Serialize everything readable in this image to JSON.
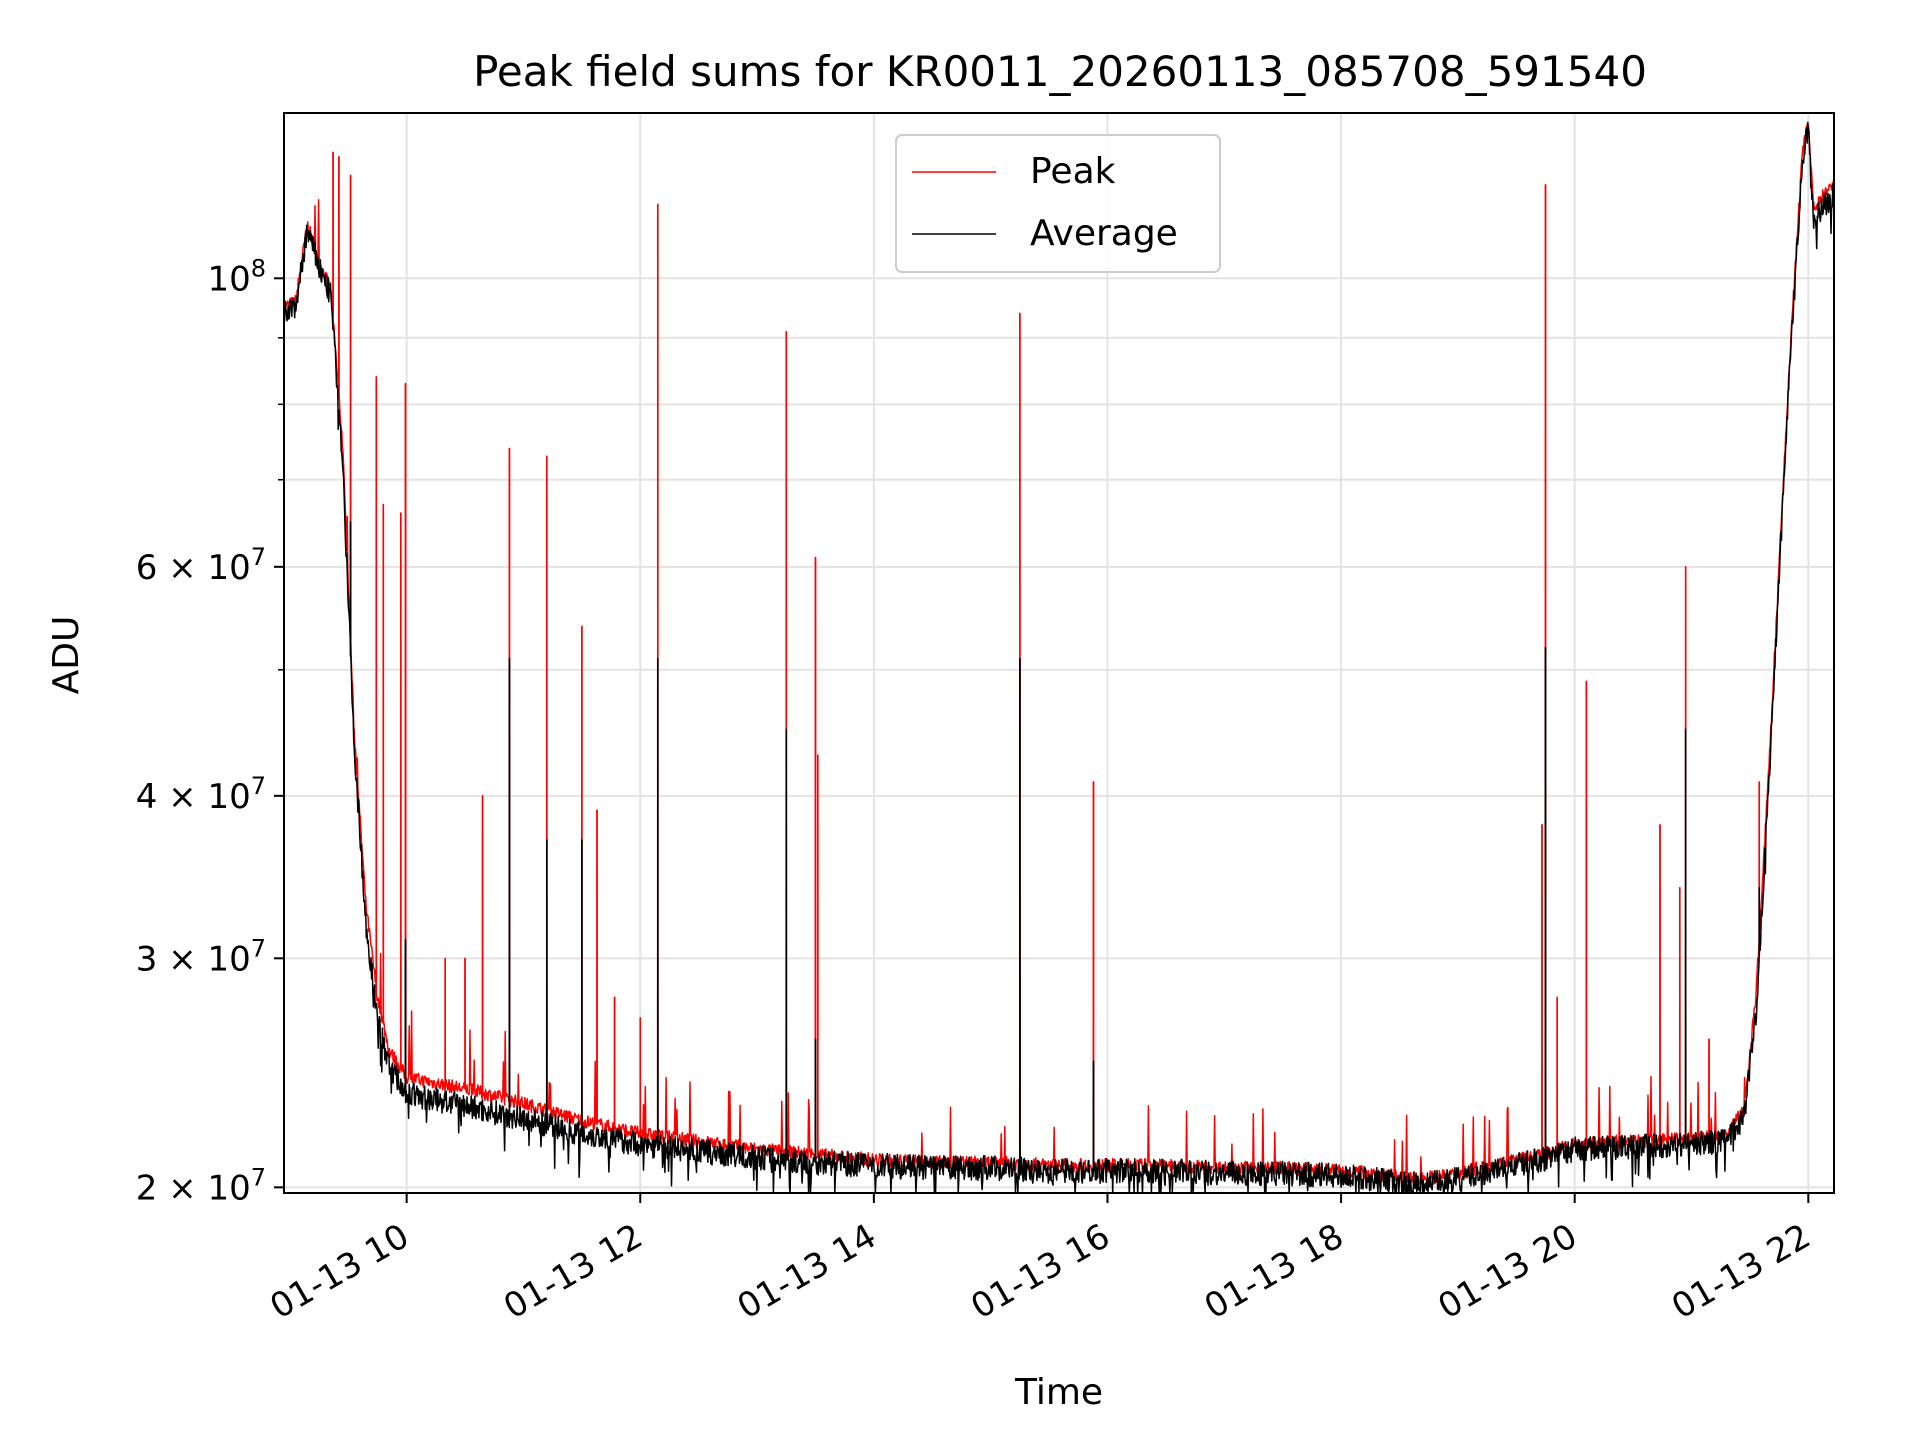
{
  "chart_data": {
    "type": "line",
    "title": "Peak field sums for KR0011_20260113_085708_591540",
    "xlabel": "Time",
    "ylabel": "ADU",
    "yscale": "log",
    "ylim": [
      19800000,
      134000000
    ],
    "xlim": [
      8.95,
      22.22
    ],
    "x_unit": "hours on 01-13",
    "grid": true,
    "legend_position": "top-center",
    "x_ticks": [
      {
        "value": 10,
        "label": "01-13 10"
      },
      {
        "value": 12,
        "label": "01-13 12"
      },
      {
        "value": 14,
        "label": "01-13 14"
      },
      {
        "value": 16,
        "label": "01-13 16"
      },
      {
        "value": 18,
        "label": "01-13 18"
      },
      {
        "value": 20,
        "label": "01-13 20"
      },
      {
        "value": 22,
        "label": "01-13 22"
      }
    ],
    "y_ticks_major": [
      {
        "value": 100000000,
        "mantissa": "",
        "base": "10",
        "exp": "8"
      },
      {
        "value": 60000000,
        "mantissa": "6 × ",
        "base": "10",
        "exp": "7"
      },
      {
        "value": 40000000,
        "mantissa": "4 × ",
        "base": "10",
        "exp": "7"
      },
      {
        "value": 30000000,
        "mantissa": "3 × ",
        "base": "10",
        "exp": "7"
      },
      {
        "value": 20000000,
        "mantissa": "2 × ",
        "base": "10",
        "exp": "7"
      }
    ],
    "y_ticks_minor": [
      90000000,
      80000000,
      70000000,
      50000000
    ],
    "series": [
      {
        "name": "Peak",
        "color": "#ff0000",
        "baseline": {
          "x": [
            8.95,
            9.05,
            9.15,
            9.25,
            9.35,
            9.45,
            9.55,
            9.65,
            9.75,
            9.85,
            10.0,
            10.3,
            10.6,
            11.0,
            11.5,
            12.0,
            12.5,
            13.0,
            13.5,
            14.0,
            14.5,
            15.0,
            15.5,
            16.0,
            16.5,
            17.0,
            17.5,
            18.0,
            18.3,
            18.6,
            18.9,
            19.2,
            19.5,
            19.8,
            20.0,
            20.5,
            21.0,
            21.3,
            21.45,
            21.55,
            21.65,
            21.75,
            21.85,
            21.95,
            22.0,
            22.05,
            22.1,
            22.22
          ],
          "y": [
            95000000,
            96000000,
            110000000,
            103000000,
            98000000,
            75000000,
            45000000,
            33000000,
            28000000,
            25500000,
            24300000,
            24000000,
            23700000,
            23200000,
            22500000,
            22000000,
            21700000,
            21400000,
            21200000,
            21000000,
            20900000,
            20900000,
            20800000,
            20800000,
            20800000,
            20700000,
            20700000,
            20600000,
            20500000,
            20300000,
            20400000,
            20700000,
            21000000,
            21300000,
            21600000,
            21700000,
            21800000,
            21900000,
            23000000,
            28000000,
            40000000,
            60000000,
            90000000,
            125000000,
            132000000,
            112000000,
            115000000,
            118000000
          ]
        },
        "spikes": [
          {
            "x": 9.37,
            "y": 125000000
          },
          {
            "x": 9.42,
            "y": 124000000
          },
          {
            "x": 9.52,
            "y": 120000000
          },
          {
            "x": 9.74,
            "y": 84000000
          },
          {
            "x": 9.8,
            "y": 67000000
          },
          {
            "x": 9.95,
            "y": 66000000
          },
          {
            "x": 9.99,
            "y": 83000000
          },
          {
            "x": 10.33,
            "y": 30000000
          },
          {
            "x": 10.5,
            "y": 30000000
          },
          {
            "x": 10.65,
            "y": 40000000
          },
          {
            "x": 10.88,
            "y": 74000000
          },
          {
            "x": 11.2,
            "y": 73000000
          },
          {
            "x": 11.5,
            "y": 54000000
          },
          {
            "x": 11.63,
            "y": 39000000
          },
          {
            "x": 11.78,
            "y": 28000000
          },
          {
            "x": 12.0,
            "y": 27000000
          },
          {
            "x": 12.15,
            "y": 114000000
          },
          {
            "x": 13.25,
            "y": 91000000
          },
          {
            "x": 13.5,
            "y": 61000000
          },
          {
            "x": 13.52,
            "y": 43000000
          },
          {
            "x": 15.25,
            "y": 94000000
          },
          {
            "x": 15.88,
            "y": 41000000
          },
          {
            "x": 19.72,
            "y": 38000000
          },
          {
            "x": 19.75,
            "y": 118000000
          },
          {
            "x": 19.85,
            "y": 28000000
          },
          {
            "x": 20.1,
            "y": 49000000
          },
          {
            "x": 20.73,
            "y": 38000000
          },
          {
            "x": 20.9,
            "y": 34000000
          },
          {
            "x": 20.95,
            "y": 60000000
          },
          {
            "x": 21.15,
            "y": 26000000
          },
          {
            "x": 21.58,
            "y": 41000000
          }
        ]
      },
      {
        "name": "Average",
        "color": "#000000",
        "baseline": {
          "x": [
            8.95,
            9.05,
            9.15,
            9.25,
            9.35,
            9.45,
            9.55,
            9.65,
            9.75,
            9.85,
            10.0,
            10.3,
            10.6,
            11.0,
            11.5,
            12.0,
            12.5,
            13.0,
            13.5,
            14.0,
            14.5,
            15.0,
            15.5,
            16.0,
            16.5,
            17.0,
            17.5,
            18.0,
            18.3,
            18.6,
            18.9,
            19.2,
            19.5,
            19.8,
            20.0,
            20.5,
            21.0,
            21.3,
            21.45,
            21.55,
            21.65,
            21.75,
            21.85,
            21.95,
            22.0,
            22.05,
            22.1,
            22.22
          ],
          "y": [
            94000000,
            95000000,
            109000000,
            102000000,
            97000000,
            73000000,
            44000000,
            32000000,
            27000000,
            24800000,
            23600000,
            23300000,
            23000000,
            22600000,
            22000000,
            21600000,
            21300000,
            21100000,
            20900000,
            20800000,
            20700000,
            20700000,
            20600000,
            20600000,
            20600000,
            20500000,
            20500000,
            20400000,
            20300000,
            20100000,
            20200000,
            20500000,
            20800000,
            21100000,
            21400000,
            21500000,
            21600000,
            21700000,
            22700000,
            27000000,
            39000000,
            59000000,
            89000000,
            123000000,
            130000000,
            110000000,
            113000000,
            116000000
          ]
        },
        "spikes": [
          {
            "x": 9.52,
            "y": 65000000
          },
          {
            "x": 9.99,
            "y": 31000000
          },
          {
            "x": 10.88,
            "y": 51000000
          },
          {
            "x": 11.2,
            "y": 37000000
          },
          {
            "x": 11.5,
            "y": 37000000
          },
          {
            "x": 12.15,
            "y": 51000000
          },
          {
            "x": 13.25,
            "y": 45000000
          },
          {
            "x": 13.5,
            "y": 26000000
          },
          {
            "x": 15.25,
            "y": 51000000
          },
          {
            "x": 15.88,
            "y": 25000000
          },
          {
            "x": 19.75,
            "y": 52000000
          },
          {
            "x": 20.95,
            "y": 45000000
          },
          {
            "x": 21.58,
            "y": 34000000
          }
        ]
      }
    ]
  }
}
